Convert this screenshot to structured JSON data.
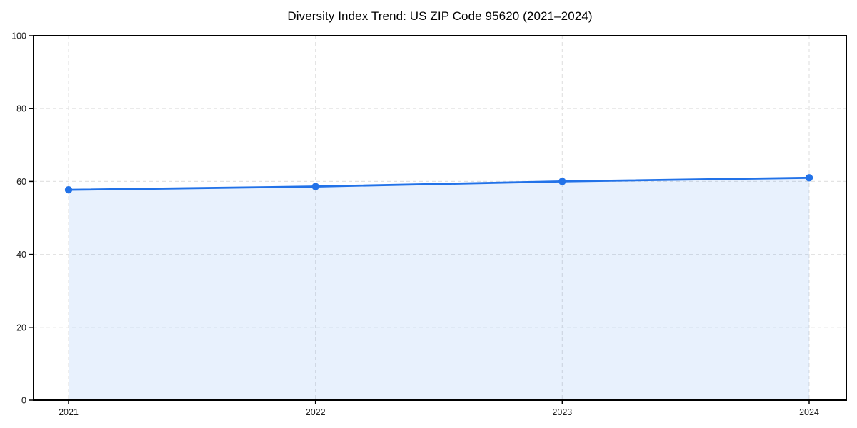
{
  "figure": {
    "title": "Diversity Index Trend: US ZIP Code 95620 (2021–2024)"
  },
  "chart_data": {
    "type": "line",
    "title": "Diversity Index Trend: US ZIP Code 95620 (2021–2024)",
    "x": [
      "2021",
      "2022",
      "2023",
      "2024"
    ],
    "series": [
      {
        "name": "Diversity Index",
        "values": [
          57.7,
          58.6,
          60.0,
          61.0
        ]
      }
    ],
    "xlabel": "",
    "ylabel": "",
    "ylim": [
      0,
      100
    ],
    "yticks": [
      0,
      20,
      40,
      60,
      80,
      100
    ],
    "grid": true,
    "grid_style": "dashed",
    "legend": false,
    "area_fill": true,
    "markers": true,
    "colors": {
      "line": "#2272e8",
      "marker": "#2272e8",
      "fill": "#2272e8",
      "fill_opacity": 0.1,
      "grid": "#e3e3e3",
      "axis": "#000000",
      "text": "#1a1a1a"
    }
  }
}
